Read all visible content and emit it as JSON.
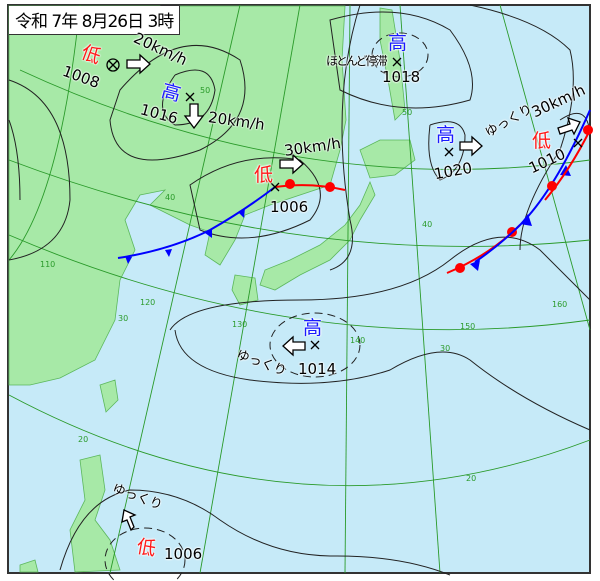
{
  "title": "令和 7年 8月26日 3時",
  "colors": {
    "land": "#a7e9a7",
    "sea": "#c6eaf8",
    "high": "#1a1aff",
    "low": "#ff1a1a",
    "cold_front": "#0000ff",
    "warm_front": "#ff0000",
    "grid": "#2a9a2a",
    "isobar": "#222222"
  },
  "systems": [
    {
      "type": "low",
      "symbol": "低",
      "pressure": "1008",
      "movement": "20km/h",
      "arrow": "east"
    },
    {
      "type": "high",
      "symbol": "高",
      "pressure": "1016",
      "movement": "20km/h",
      "arrow": "south"
    },
    {
      "type": "low",
      "symbol": "低",
      "pressure": "1006",
      "movement": "30km/h",
      "arrow": "east"
    },
    {
      "type": "high",
      "symbol": "高",
      "pressure": "1018",
      "movement": "ほとんど停滞"
    },
    {
      "type": "high",
      "symbol": "高",
      "pressure": "1020",
      "movement": "ゆっくり",
      "arrow": "east"
    },
    {
      "type": "low",
      "symbol": "低",
      "pressure": "1010",
      "movement": "30km/h",
      "arrow": "east"
    },
    {
      "type": "high",
      "symbol": "高",
      "pressure": "1014",
      "movement": "ゆっくり",
      "arrow": "west"
    },
    {
      "type": "low",
      "symbol": "低",
      "pressure": "1006",
      "movement": "ゆっくり",
      "arrow": "north"
    }
  ],
  "grid_labels": {
    "lat": [
      "50",
      "40",
      "30",
      "20",
      "50",
      "40",
      "30",
      "20"
    ],
    "lon": [
      "120",
      "130",
      "140",
      "150",
      "160",
      "110"
    ]
  }
}
